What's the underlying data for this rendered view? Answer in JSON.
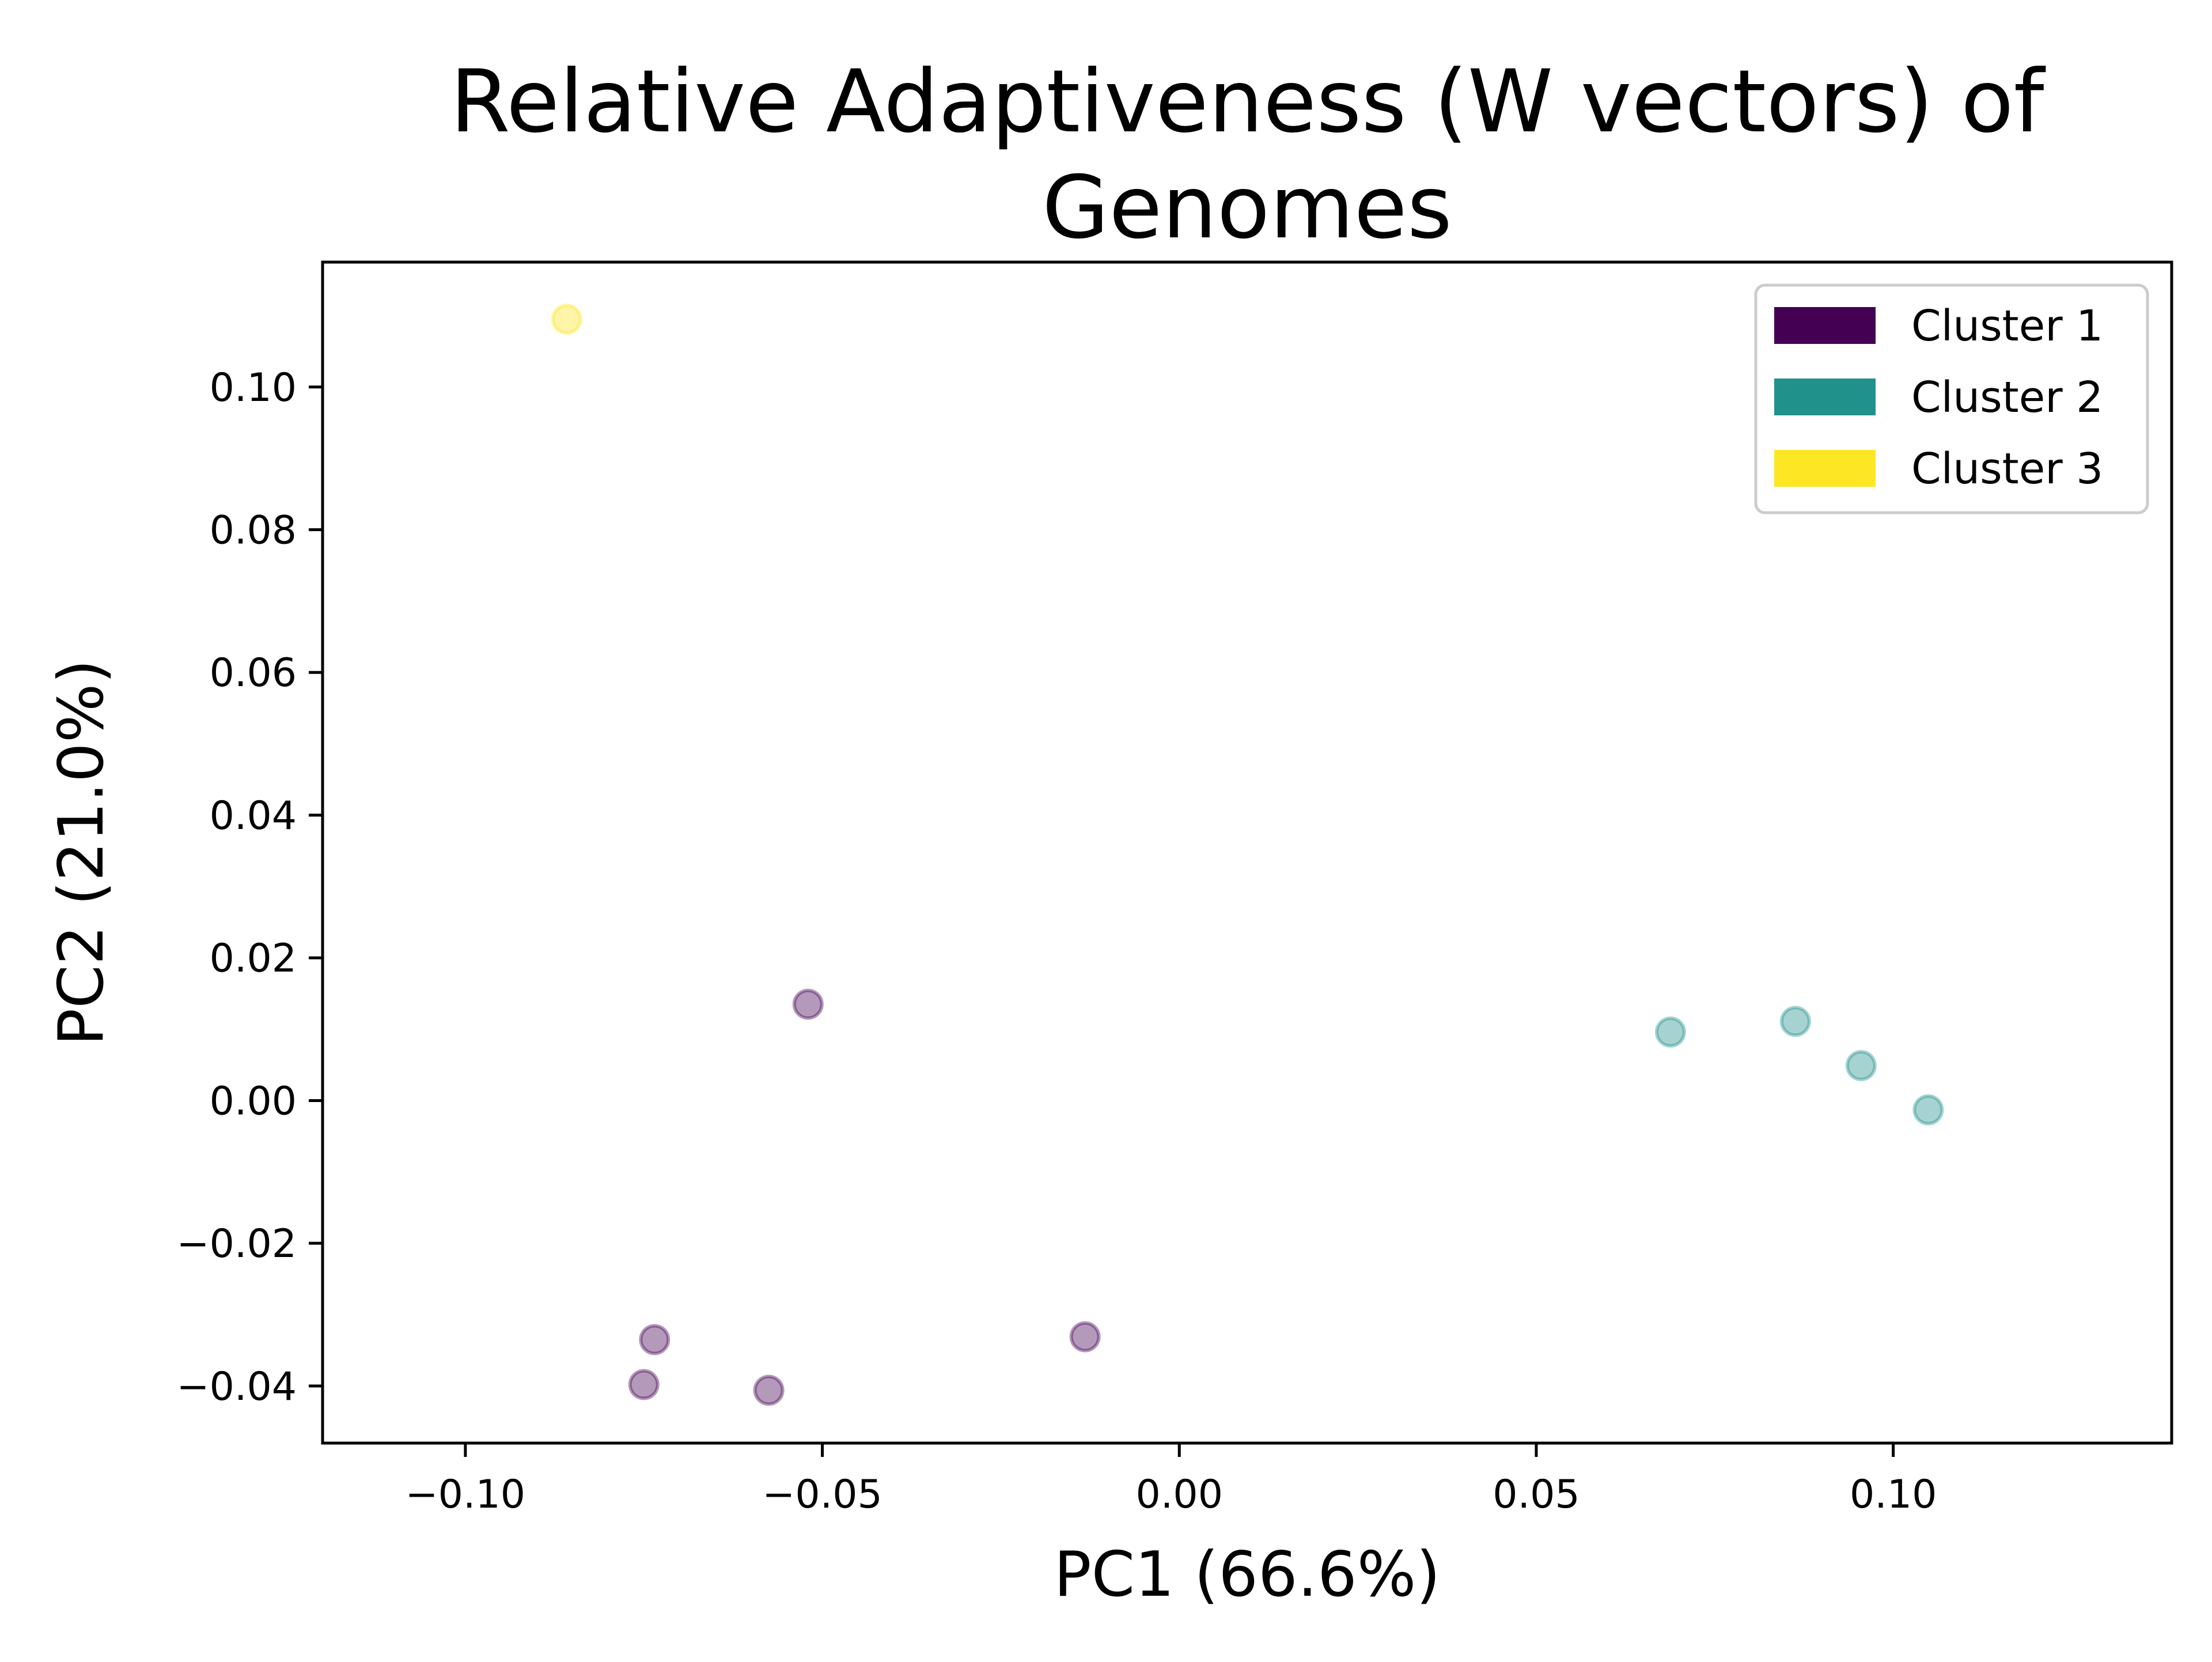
{
  "chart_data": {
    "type": "scatter",
    "title_lines": [
      "Relative Adaptiveness (W vectors) of",
      "Genomes"
    ],
    "xlabel": "PC1 (66.6%)",
    "ylabel": "PC2 (21.0%)",
    "xlim": [
      -0.12,
      0.139
    ],
    "ylim": [
      -0.048,
      0.1175
    ],
    "xticks": [
      {
        "value": -0.1,
        "label": "−0.10"
      },
      {
        "value": -0.05,
        "label": "−0.05"
      },
      {
        "value": 0.0,
        "label": "0.00"
      },
      {
        "value": 0.05,
        "label": "0.05"
      },
      {
        "value": 0.1,
        "label": "0.10"
      }
    ],
    "yticks": [
      {
        "value": -0.04,
        "label": "−0.04"
      },
      {
        "value": -0.02,
        "label": "−0.02"
      },
      {
        "value": 0.0,
        "label": "0.00"
      },
      {
        "value": 0.02,
        "label": "0.02"
      },
      {
        "value": 0.04,
        "label": "0.04"
      },
      {
        "value": 0.06,
        "label": "0.06"
      },
      {
        "value": 0.08,
        "label": "0.08"
      },
      {
        "value": 0.1,
        "label": "0.10"
      }
    ],
    "grid": false,
    "legend_position": "top-right",
    "marker_alpha": 0.4,
    "series": [
      {
        "name": "Cluster 1",
        "color": "#440154",
        "points": [
          {
            "x": -0.052,
            "y": 0.0135
          },
          {
            "x": -0.0735,
            "y": -0.0335
          },
          {
            "x": -0.075,
            "y": -0.0398
          },
          {
            "x": -0.0575,
            "y": -0.0406
          },
          {
            "x": -0.0132,
            "y": -0.0331
          }
        ]
      },
      {
        "name": "Cluster 2",
        "color": "#21918c",
        "points": [
          {
            "x": 0.0688,
            "y": 0.0096
          },
          {
            "x": 0.0863,
            "y": 0.0111
          },
          {
            "x": 0.0955,
            "y": 0.0049
          },
          {
            "x": 0.1049,
            "y": -0.0013
          }
        ]
      },
      {
        "name": "Cluster 3",
        "color": "#fde725",
        "points": [
          {
            "x": -0.0858,
            "y": 0.1095
          }
        ]
      }
    ]
  }
}
